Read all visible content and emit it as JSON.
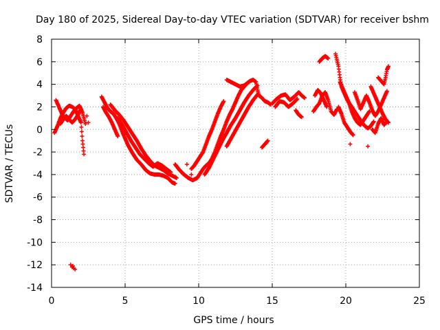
{
  "chart_data": {
    "type": "scatter",
    "title": "Day 180 of 2025, Sidereal Day-to-day VTEC variation (SDTVAR) for receiver bshm",
    "xlabel": "GPS time / hours",
    "ylabel": "SDTVAR / TECUs",
    "xlim": [
      0,
      25
    ],
    "ylim": [
      -14,
      8
    ],
    "xticks": [
      0,
      5,
      10,
      15,
      20,
      25
    ],
    "yticks": [
      -14,
      -12,
      -10,
      -8,
      -6,
      -4,
      -2,
      0,
      2,
      4,
      6,
      8
    ],
    "grid": true,
    "marker": "+",
    "color": "#ff0000",
    "series": [
      {
        "name": "SDTVAR",
        "trace_segments": [
          [
            [
              0.2,
              -0.3
            ],
            [
              0.4,
              0.3
            ],
            [
              0.6,
              1.0
            ],
            [
              0.8,
              1.5
            ],
            [
              1.0,
              1.9
            ],
            [
              1.2,
              2.1
            ],
            [
              1.4,
              2.0
            ],
            [
              1.6,
              1.8
            ],
            [
              1.8,
              1.2
            ],
            [
              2.0,
              0.6
            ],
            [
              2.1,
              -1.0
            ],
            [
              2.2,
              -2.2
            ]
          ],
          [
            [
              0.3,
              2.6
            ],
            [
              0.5,
              2.0
            ],
            [
              0.7,
              1.4
            ],
            [
              0.9,
              1.0
            ],
            [
              1.1,
              0.8
            ],
            [
              1.3,
              1.2
            ],
            [
              1.5,
              1.6
            ],
            [
              1.7,
              1.9
            ],
            [
              1.9,
              2.1
            ],
            [
              2.1,
              1.5
            ],
            [
              2.3,
              0.5
            ]
          ],
          [
            [
              0.6,
              0.5
            ],
            [
              0.8,
              0.9
            ],
            [
              1.0,
              1.2
            ],
            [
              1.2,
              0.9
            ],
            [
              1.4,
              0.6
            ],
            [
              1.6,
              0.9
            ],
            [
              1.8,
              1.3
            ],
            [
              2.0,
              1.8
            ]
          ],
          [
            [
              3.4,
              2.9
            ],
            [
              3.6,
              2.4
            ],
            [
              3.8,
              1.9
            ],
            [
              4.0,
              1.6
            ],
            [
              4.2,
              1.4
            ],
            [
              4.4,
              1.0
            ],
            [
              4.6,
              0.5
            ],
            [
              4.8,
              -0.2
            ],
            [
              5.0,
              -0.8
            ],
            [
              5.2,
              -1.4
            ],
            [
              5.5,
              -2.1
            ],
            [
              5.8,
              -2.7
            ],
            [
              6.1,
              -3.1
            ],
            [
              6.4,
              -3.6
            ],
            [
              6.7,
              -3.9
            ],
            [
              7.0,
              -4.0
            ],
            [
              7.3,
              -4.0
            ],
            [
              7.6,
              -4.1
            ],
            [
              7.9,
              -4.3
            ],
            [
              8.2,
              -4.7
            ],
            [
              8.4,
              -4.8
            ]
          ],
          [
            [
              4.0,
              2.2
            ],
            [
              4.3,
              1.7
            ],
            [
              4.6,
              1.3
            ],
            [
              4.9,
              0.8
            ],
            [
              5.2,
              0.2
            ],
            [
              5.5,
              -0.4
            ],
            [
              5.8,
              -1.0
            ],
            [
              6.1,
              -1.7
            ],
            [
              6.4,
              -2.3
            ],
            [
              6.7,
              -2.8
            ],
            [
              7.0,
              -3.2
            ],
            [
              7.3,
              -3.4
            ],
            [
              7.6,
              -3.6
            ],
            [
              7.9,
              -3.9
            ],
            [
              8.2,
              -4.1
            ],
            [
              8.5,
              -4.3
            ]
          ],
          [
            [
              4.5,
              1.0
            ],
            [
              4.8,
              0.4
            ],
            [
              5.1,
              -0.3
            ],
            [
              5.4,
              -1.0
            ],
            [
              5.7,
              -1.6
            ],
            [
              6.0,
              -2.2
            ],
            [
              6.3,
              -2.6
            ],
            [
              6.6,
              -3.0
            ],
            [
              6.9,
              -3.3
            ],
            [
              7.2,
              -3.0
            ],
            [
              7.5,
              -3.2
            ],
            [
              7.8,
              -3.5
            ],
            [
              8.1,
              -3.8
            ]
          ],
          [
            [
              3.5,
              2.0
            ],
            [
              3.7,
              1.5
            ],
            [
              3.9,
              1.1
            ],
            [
              4.1,
              0.6
            ],
            [
              4.3,
              0.0
            ],
            [
              4.5,
              -0.6
            ]
          ],
          [
            [
              8.4,
              -3.1
            ],
            [
              8.7,
              -3.6
            ],
            [
              9.0,
              -4.0
            ],
            [
              9.3,
              -4.3
            ],
            [
              9.6,
              -4.5
            ],
            [
              9.9,
              -4.3
            ],
            [
              10.1,
              -3.9
            ],
            [
              10.3,
              -3.5
            ],
            [
              10.5,
              -3.2
            ],
            [
              10.7,
              -3.0
            ],
            [
              10.9,
              -2.6
            ],
            [
              11.1,
              -2.0
            ],
            [
              11.3,
              -1.3
            ],
            [
              11.5,
              -0.6
            ],
            [
              11.7,
              0.0
            ],
            [
              11.9,
              0.7
            ],
            [
              12.1,
              1.3
            ],
            [
              12.3,
              1.8
            ],
            [
              12.5,
              2.4
            ],
            [
              12.7,
              3.0
            ],
            [
              12.9,
              3.5
            ],
            [
              13.1,
              3.8
            ],
            [
              13.3,
              4.1
            ],
            [
              13.5,
              4.3
            ],
            [
              13.7,
              4.4
            ],
            [
              13.9,
              4.2
            ],
            [
              14.0,
              3.5
            ],
            [
              14.1,
              3.0
            ],
            [
              14.3,
              2.8
            ],
            [
              14.5,
              2.5
            ],
            [
              14.7,
              2.4
            ],
            [
              14.9,
              2.2
            ]
          ],
          [
            [
              9.5,
              -3.5
            ],
            [
              9.7,
              -3.2
            ],
            [
              9.9,
              -2.8
            ],
            [
              10.1,
              -2.4
            ],
            [
              10.3,
              -2.0
            ],
            [
              10.5,
              -1.3
            ],
            [
              10.7,
              -0.6
            ],
            [
              10.9,
              0.0
            ],
            [
              11.1,
              0.7
            ],
            [
              11.3,
              1.4
            ],
            [
              11.5,
              2.0
            ],
            [
              11.7,
              2.5
            ]
          ],
          [
            [
              10.4,
              -4.0
            ],
            [
              10.7,
              -3.4
            ],
            [
              11.0,
              -2.6
            ],
            [
              11.3,
              -1.8
            ],
            [
              11.6,
              -1.0
            ],
            [
              11.9,
              -0.3
            ],
            [
              12.2,
              0.4
            ],
            [
              12.5,
              1.0
            ],
            [
              12.8,
              1.7
            ],
            [
              13.1,
              2.4
            ],
            [
              13.4,
              3.0
            ],
            [
              13.7,
              3.5
            ],
            [
              14.0,
              3.9
            ]
          ],
          [
            [
              11.9,
              -1.5
            ],
            [
              12.2,
              -0.8
            ],
            [
              12.5,
              -0.1
            ],
            [
              12.8,
              0.6
            ],
            [
              13.1,
              1.3
            ],
            [
              13.4,
              2.0
            ],
            [
              13.7,
              2.6
            ],
            [
              14.0,
              3.1
            ]
          ],
          [
            [
              11.9,
              4.4
            ],
            [
              12.2,
              4.2
            ],
            [
              12.5,
              4.0
            ],
            [
              12.8,
              3.8
            ],
            [
              13.1,
              3.9
            ],
            [
              13.4,
              4.2
            ]
          ],
          [
            [
              14.3,
              -1.6
            ],
            [
              14.5,
              -1.3
            ],
            [
              14.7,
              -1.0
            ]
          ],
          [
            [
              15.0,
              2.3
            ],
            [
              15.3,
              2.7
            ],
            [
              15.6,
              3.0
            ],
            [
              15.9,
              3.1
            ],
            [
              16.2,
              2.6
            ],
            [
              16.5,
              2.9
            ],
            [
              16.8,
              3.3
            ],
            [
              17.0,
              3.0
            ],
            [
              17.2,
              2.8
            ]
          ],
          [
            [
              15.2,
              2.0
            ],
            [
              15.5,
              2.5
            ],
            [
              15.8,
              2.4
            ],
            [
              16.1,
              2.0
            ],
            [
              16.4,
              2.3
            ],
            [
              16.7,
              2.7
            ]
          ],
          [
            [
              16.6,
              1.7
            ],
            [
              16.8,
              1.3
            ],
            [
              17.0,
              1.1
            ]
          ],
          [
            [
              17.8,
              1.6
            ],
            [
              18.0,
              2.0
            ],
            [
              18.2,
              2.3
            ],
            [
              18.4,
              3.0
            ],
            [
              18.6,
              3.3
            ],
            [
              18.8,
              2.6
            ],
            [
              19.0,
              1.6
            ],
            [
              19.2,
              1.3
            ],
            [
              19.4,
              1.8
            ]
          ],
          [
            [
              17.9,
              3.0
            ],
            [
              18.1,
              3.5
            ],
            [
              18.3,
              3.2
            ],
            [
              18.5,
              2.6
            ],
            [
              18.7,
              2.0
            ]
          ],
          [
            [
              18.2,
              6.0
            ],
            [
              18.4,
              6.3
            ],
            [
              18.6,
              6.5
            ],
            [
              18.8,
              6.3
            ]
          ],
          [
            [
              19.3,
              6.7
            ],
            [
              19.5,
              5.6
            ],
            [
              19.6,
              4.6
            ],
            [
              19.7,
              3.8
            ],
            [
              19.9,
              3.2
            ],
            [
              20.1,
              2.6
            ],
            [
              20.3,
              2.2
            ],
            [
              20.5,
              1.8
            ],
            [
              20.7,
              1.4
            ],
            [
              20.9,
              1.0
            ],
            [
              21.1,
              0.6
            ],
            [
              21.3,
              0.3
            ],
            [
              21.5,
              0.1
            ],
            [
              21.7,
              0.3
            ],
            [
              21.9,
              0.7
            ]
          ],
          [
            [
              19.6,
              4.2
            ],
            [
              19.8,
              3.6
            ],
            [
              20.0,
              3.0
            ],
            [
              20.2,
              2.4
            ],
            [
              20.4,
              1.6
            ],
            [
              20.6,
              1.0
            ],
            [
              20.8,
              0.6
            ],
            [
              21.0,
              0.4
            ],
            [
              21.2,
              0.8
            ],
            [
              21.4,
              1.2
            ],
            [
              21.6,
              1.6
            ]
          ],
          [
            [
              19.5,
              2.0
            ],
            [
              19.7,
              1.4
            ],
            [
              19.9,
              0.6
            ],
            [
              20.1,
              0.2
            ],
            [
              20.3,
              -0.2
            ],
            [
              20.5,
              -0.5
            ]
          ],
          [
            [
              20.6,
              3.3
            ],
            [
              20.8,
              2.6
            ],
            [
              21.0,
              1.8
            ],
            [
              21.2,
              2.4
            ],
            [
              21.4,
              3.0
            ],
            [
              21.6,
              2.4
            ],
            [
              21.8,
              1.7
            ],
            [
              22.0,
              1.2
            ],
            [
              22.2,
              1.6
            ],
            [
              22.4,
              2.2
            ],
            [
              22.6,
              2.8
            ],
            [
              22.8,
              3.4
            ]
          ],
          [
            [
              21.7,
              3.8
            ],
            [
              21.9,
              3.2
            ],
            [
              22.1,
              2.6
            ],
            [
              22.3,
              2.0
            ],
            [
              22.5,
              1.4
            ],
            [
              22.7,
              0.9
            ],
            [
              22.9,
              0.6
            ]
          ],
          [
            [
              22.2,
              4.6
            ],
            [
              22.4,
              4.3
            ],
            [
              22.6,
              4.0
            ],
            [
              22.7,
              4.6
            ],
            [
              22.8,
              5.3
            ],
            [
              22.9,
              5.6
            ]
          ],
          [
            [
              21.8,
              0.0
            ],
            [
              22.0,
              -0.3
            ],
            [
              22.2,
              0.5
            ],
            [
              22.4,
              1.0
            ],
            [
              22.6,
              0.4
            ],
            [
              22.8,
              0.7
            ]
          ]
        ],
        "points": [
          [
            1.3,
            -12.0
          ],
          [
            1.4,
            -12.2
          ],
          [
            1.5,
            -12.3
          ],
          [
            1.6,
            -12.4
          ],
          [
            1.45,
            -12.1
          ],
          [
            21.5,
            -1.5
          ],
          [
            20.3,
            -1.3
          ],
          [
            16.9,
            1.2
          ],
          [
            9.2,
            -3.1
          ],
          [
            9.5,
            -4.0
          ],
          [
            14.6,
            -1.2
          ],
          [
            2.4,
            1.2
          ],
          [
            2.5,
            0.6
          ]
        ]
      }
    ]
  }
}
